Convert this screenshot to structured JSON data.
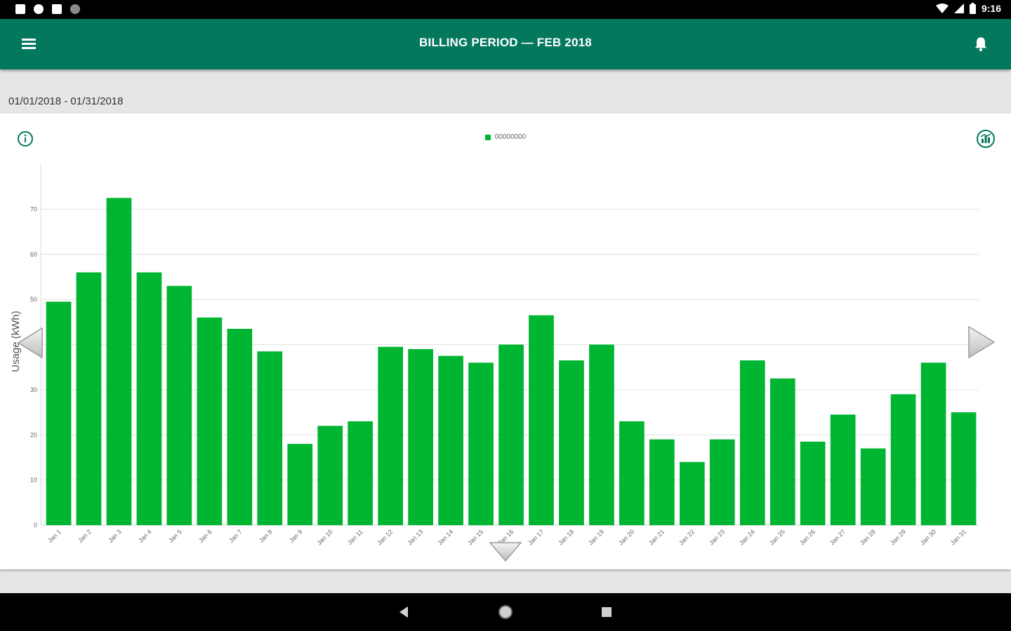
{
  "status_bar": {
    "time": "9:16",
    "left_icons": [
      "notification-a-icon",
      "settings-notification-icon",
      "sd-card-icon",
      "circle-notification-icon"
    ],
    "right_icons": [
      "wifi-icon",
      "signal-icon",
      "battery-icon"
    ]
  },
  "app_bar": {
    "title": "BILLING PERIOD  —  FEB 2018",
    "menu_icon": "hamburger-menu-icon",
    "bell_icon": "bell-icon"
  },
  "date_range": "01/01/2018 - 01/31/2018",
  "chart_header": {
    "info_icon": "info-icon",
    "compare_icon": "compare-chart-icon",
    "legend_label": "00000000"
  },
  "colors": {
    "app_bar": "#04785c",
    "bar": "#00b531",
    "gridline": "#e2e2e2"
  },
  "chart_data": {
    "type": "bar",
    "title": "",
    "xlabel": "",
    "ylabel": "Usage (kWh)",
    "ylim": [
      0,
      80
    ],
    "yticks": [
      0,
      10,
      20,
      30,
      40,
      50,
      60,
      70
    ],
    "grid": true,
    "legend_position": "top-center",
    "categories": [
      "Jan 1",
      "Jan 2",
      "Jan 3",
      "Jan 4",
      "Jan 5",
      "Jan 6",
      "Jan 7",
      "Jan 8",
      "Jan 9",
      "Jan 10",
      "Jan 11",
      "Jan 12",
      "Jan 13",
      "Jan 14",
      "Jan 15",
      "Jan 16",
      "Jan 17",
      "Jan 18",
      "Jan 19",
      "Jan 20",
      "Jan 21",
      "Jan 22",
      "Jan 23",
      "Jan 24",
      "Jan 25",
      "Jan 26",
      "Jan 27",
      "Jan 28",
      "Jan 29",
      "Jan 30",
      "Jan 31"
    ],
    "series": [
      {
        "name": "00000000",
        "values": [
          49.5,
          56,
          72.5,
          56,
          53,
          46,
          43.5,
          38.5,
          18,
          22,
          23,
          39.5,
          39,
          37.5,
          36,
          40,
          46.5,
          36.5,
          40,
          23,
          19,
          14,
          19,
          36.5,
          32.5,
          18.5,
          24.5,
          17,
          29,
          36,
          25
        ]
      }
    ]
  },
  "nav_arrows": {
    "left": "chevron-left-icon",
    "right": "chevron-right-icon",
    "down": "chevron-down-icon"
  },
  "system_nav": {
    "back": "back-icon",
    "home": "home-icon",
    "recent": "recent-apps-icon"
  }
}
